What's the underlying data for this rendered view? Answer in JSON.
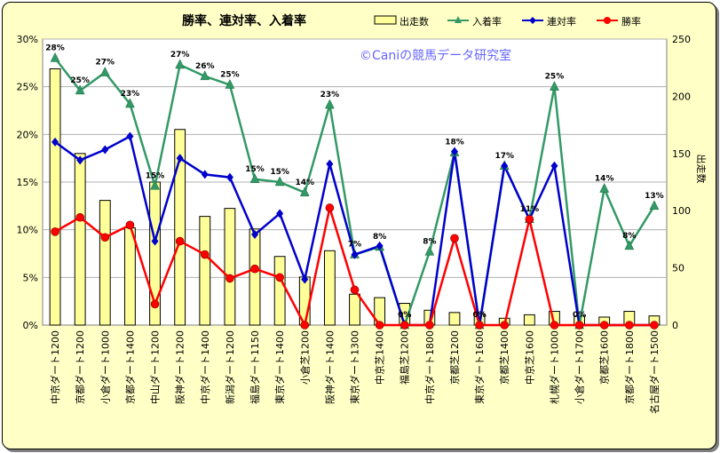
{
  "chart_data": {
    "type": "bar+line",
    "title": "勝率、連対率、入着率",
    "watermark": "©Caniの競馬データ研究室",
    "y2label": "出走数",
    "ylim_left": [
      0,
      0.3
    ],
    "ylim_right": [
      0,
      250
    ],
    "left_ticks": [
      "0%",
      "5%",
      "10%",
      "15%",
      "20%",
      "25%",
      "30%"
    ],
    "right_ticks": [
      "0",
      "50",
      "100",
      "150",
      "200",
      "250"
    ],
    "categories": [
      "中京ダート1200",
      "京都ダート1200",
      "小倉ダート1000",
      "京都ダート1400",
      "中山ダート1200",
      "阪神ダート1200",
      "中京ダート1400",
      "新潟ダート1200",
      "福島ダート1150",
      "東京ダート1400",
      "小倉芝1200",
      "阪神ダート1400",
      "東京ダート1300",
      "中京芝1400",
      "福島芝1200",
      "中京ダート1800",
      "京都芝1200",
      "東京ダート1600",
      "京都芝1400",
      "中京芝1600",
      "札幌ダート1000",
      "小倉ダート1700",
      "京都芝1600",
      "京都ダート1800",
      "名古屋ダート1500"
    ],
    "series": [
      {
        "name": "出走数",
        "type": "bar",
        "axis": "right",
        "color": "#ffff99",
        "values": [
          224,
          150,
          109,
          85,
          125,
          171,
          95,
          102,
          84,
          60,
          42,
          65,
          27,
          24,
          19,
          13,
          11,
          10,
          6,
          9,
          12,
          8,
          7,
          12,
          8
        ]
      },
      {
        "name": "入着率",
        "type": "line",
        "axis": "left",
        "color": "#339966",
        "marker": "triangle",
        "values": [
          0.28,
          0.246,
          0.265,
          0.232,
          0.146,
          0.273,
          0.261,
          0.252,
          0.153,
          0.15,
          0.139,
          0.231,
          0.074,
          0.082,
          0.0,
          0.077,
          0.181,
          0.0,
          0.167,
          0.111,
          0.25,
          0.0,
          0.143,
          0.083,
          0.125
        ]
      },
      {
        "name": "連対率",
        "type": "line",
        "axis": "left",
        "color": "#0000cc",
        "marker": "diamond",
        "values": [
          0.192,
          0.173,
          0.184,
          0.198,
          0.088,
          0.175,
          0.158,
          0.155,
          0.095,
          0.117,
          0.048,
          0.169,
          0.074,
          0.083,
          0.0,
          0.0,
          0.182,
          0.0,
          0.167,
          0.111,
          0.167,
          0.0,
          0.0,
          0.0,
          0.0
        ]
      },
      {
        "name": "勝率",
        "type": "line",
        "axis": "left",
        "color": "#ff0000",
        "marker": "circle",
        "values": [
          0.098,
          0.113,
          0.092,
          0.105,
          0.022,
          0.088,
          0.074,
          0.049,
          0.059,
          0.05,
          0.0,
          0.123,
          0.037,
          0.0,
          0.0,
          0.0,
          0.091,
          0.0,
          0.0,
          0.111,
          0.0,
          0.0,
          0.0,
          0.0,
          0.0
        ]
      }
    ],
    "data_labels": [
      "28%",
      "25%",
      "27%",
      "23%",
      "15%",
      "27%",
      "26%",
      "25%",
      "15%",
      "15%",
      "14%",
      "23%",
      "7%",
      "8%",
      "0%",
      "8%",
      "18%",
      "0%",
      "17%",
      "11%",
      "25%",
      "0%",
      "14%",
      "8%",
      "13%"
    ],
    "grid": true,
    "legend_position": "top-right"
  }
}
